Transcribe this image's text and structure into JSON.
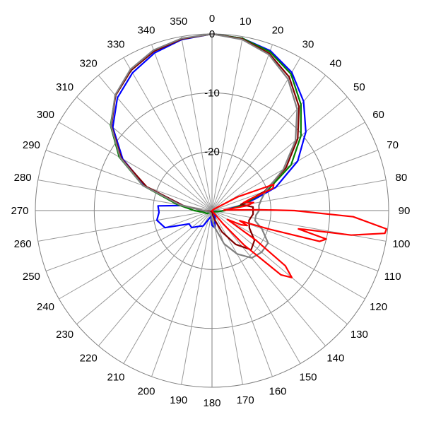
{
  "chart_data": {
    "type": "polar-line",
    "title": "",
    "angle_direction": "clockwise",
    "zero_at": "top",
    "angle_ticks": [
      0,
      10,
      20,
      30,
      40,
      50,
      60,
      70,
      80,
      90,
      100,
      110,
      120,
      130,
      140,
      150,
      160,
      170,
      180,
      190,
      200,
      210,
      220,
      230,
      240,
      250,
      260,
      270,
      280,
      290,
      300,
      310,
      320,
      330,
      340,
      350
    ],
    "radial_range": [
      -30,
      0
    ],
    "radial_ticks": [
      0,
      -10,
      -20
    ],
    "radial_tick_labels": [
      "0",
      "-10",
      "-20"
    ],
    "grid": true,
    "legend": "none",
    "series": [
      {
        "color": "#0000ff",
        "points": [
          [
            0,
            0
          ],
          [
            10,
            -0.3
          ],
          [
            20,
            -1.1
          ],
          [
            30,
            -2.9
          ],
          [
            40,
            -5.8
          ],
          [
            50,
            -9.2
          ],
          [
            60,
            -13.2
          ],
          [
            70,
            -18.5
          ],
          [
            75,
            -22.5
          ],
          [
            80,
            -25.3
          ],
          [
            90,
            -28
          ],
          [
            100,
            -29
          ],
          [
            110,
            -29.5
          ],
          [
            130,
            -29.8
          ],
          [
            150,
            -29
          ],
          [
            170,
            -27
          ],
          [
            180,
            -27.5
          ],
          [
            190,
            -29
          ],
          [
            200,
            -28.5
          ],
          [
            210,
            -27
          ],
          [
            220,
            -26.5
          ],
          [
            230,
            -25.5
          ],
          [
            240,
            -25.5
          ],
          [
            250,
            -21.5
          ],
          [
            260,
            -20.5
          ],
          [
            268,
            -21
          ],
          [
            275,
            -20.8
          ],
          [
            280,
            -25
          ],
          [
            290,
            -18
          ],
          [
            300,
            -12.5
          ],
          [
            310,
            -8
          ],
          [
            320,
            -5
          ],
          [
            330,
            -3
          ],
          [
            340,
            -1.5
          ],
          [
            350,
            -0.5
          ]
        ]
      },
      {
        "color": "#008000",
        "points": [
          [
            0,
            0
          ],
          [
            10,
            -0.3
          ],
          [
            20,
            -1.3
          ],
          [
            30,
            -3.2
          ],
          [
            40,
            -6.5
          ],
          [
            50,
            -10.3
          ],
          [
            60,
            -14.5
          ],
          [
            70,
            -20
          ],
          [
            80,
            -25
          ],
          [
            90,
            -27.8
          ],
          [
            100,
            -29
          ],
          [
            120,
            -29.6
          ],
          [
            150,
            -29.8
          ],
          [
            180,
            -29.8
          ],
          [
            210,
            -29.7
          ],
          [
            240,
            -29
          ],
          [
            260,
            -28.5
          ],
          [
            270,
            -27
          ],
          [
            280,
            -24
          ],
          [
            290,
            -17.5
          ],
          [
            300,
            -11.8
          ],
          [
            310,
            -7.5
          ],
          [
            320,
            -4.5
          ],
          [
            330,
            -2.5
          ],
          [
            340,
            -1.2
          ],
          [
            350,
            -0.4
          ]
        ]
      },
      {
        "color": "#800000",
        "points": [
          [
            0,
            0
          ],
          [
            10,
            -0.4
          ],
          [
            20,
            -1.6
          ],
          [
            30,
            -3.8
          ],
          [
            40,
            -7
          ],
          [
            50,
            -11
          ],
          [
            60,
            -15.5
          ],
          [
            70,
            -20.5
          ],
          [
            78,
            -25
          ],
          [
            85,
            -23
          ],
          [
            95,
            -23
          ],
          [
            105,
            -23.5
          ],
          [
            115,
            -23
          ],
          [
            125,
            -21.2
          ],
          [
            135,
            -20.6
          ],
          [
            145,
            -23
          ],
          [
            155,
            -26
          ],
          [
            165,
            -28.5
          ],
          [
            175,
            -29.5
          ],
          [
            200,
            -29.8
          ],
          [
            240,
            -29.7
          ],
          [
            270,
            -28.5
          ],
          [
            280,
            -25
          ],
          [
            290,
            -18.2
          ],
          [
            300,
            -12.2
          ],
          [
            310,
            -7.7
          ],
          [
            320,
            -4.5
          ],
          [
            330,
            -2.5
          ],
          [
            340,
            -1.2
          ],
          [
            350,
            -0.4
          ]
        ]
      },
      {
        "color": "#808080",
        "points": [
          [
            0,
            0
          ],
          [
            10,
            -0.5
          ],
          [
            20,
            -1.8
          ],
          [
            30,
            -4.2
          ],
          [
            40,
            -7.5
          ],
          [
            50,
            -11.5
          ],
          [
            60,
            -16
          ],
          [
            70,
            -20.3
          ],
          [
            78,
            -21.5
          ],
          [
            84,
            -22
          ],
          [
            90,
            -22
          ],
          [
            96,
            -22.5
          ],
          [
            103,
            -22.5
          ],
          [
            110,
            -21
          ],
          [
            120,
            -19
          ],
          [
            130,
            -19
          ],
          [
            140,
            -19.5
          ],
          [
            150,
            -21.5
          ],
          [
            160,
            -24
          ],
          [
            170,
            -27
          ],
          [
            180,
            -28.5
          ],
          [
            200,
            -29.5
          ],
          [
            240,
            -29.5
          ],
          [
            270,
            -28.5
          ],
          [
            280,
            -24.5
          ],
          [
            290,
            -17.5
          ],
          [
            300,
            -12
          ],
          [
            310,
            -7.6
          ],
          [
            320,
            -4.4
          ],
          [
            330,
            -2.3
          ],
          [
            340,
            -1
          ],
          [
            350,
            -0.3
          ]
        ]
      },
      {
        "color": "#ff0000",
        "points": [
          [
            0,
            -30
          ],
          [
            40,
            -30
          ],
          [
            55,
            -29.5
          ],
          [
            62,
            -25
          ],
          [
            67,
            -18.6
          ],
          [
            70,
            -19
          ],
          [
            73,
            -23
          ],
          [
            76,
            -24.5
          ],
          [
            79,
            -22.8
          ],
          [
            82,
            -24
          ],
          [
            85,
            -27
          ],
          [
            87.5,
            -28
          ],
          [
            89,
            -22
          ],
          [
            90,
            -16
          ],
          [
            92.5,
            -6
          ],
          [
            96,
            -0.2
          ],
          [
            97.5,
            -0.4
          ],
          [
            100,
            -6
          ],
          [
            101.5,
            -14
          ],
          [
            102,
            -15
          ],
          [
            104,
            -10
          ],
          [
            106,
            -11
          ],
          [
            108,
            -20
          ],
          [
            110,
            -25
          ],
          [
            113,
            -23.5
          ],
          [
            116,
            -24.5
          ],
          [
            120,
            -27
          ],
          [
            124,
            -21
          ],
          [
            127,
            -14.4
          ],
          [
            130,
            -12.3
          ],
          [
            133,
            -14
          ],
          [
            137,
            -22
          ],
          [
            140,
            -27
          ],
          [
            145,
            -29.8
          ],
          [
            180,
            -30
          ],
          [
            360,
            -30
          ]
        ]
      }
    ]
  }
}
